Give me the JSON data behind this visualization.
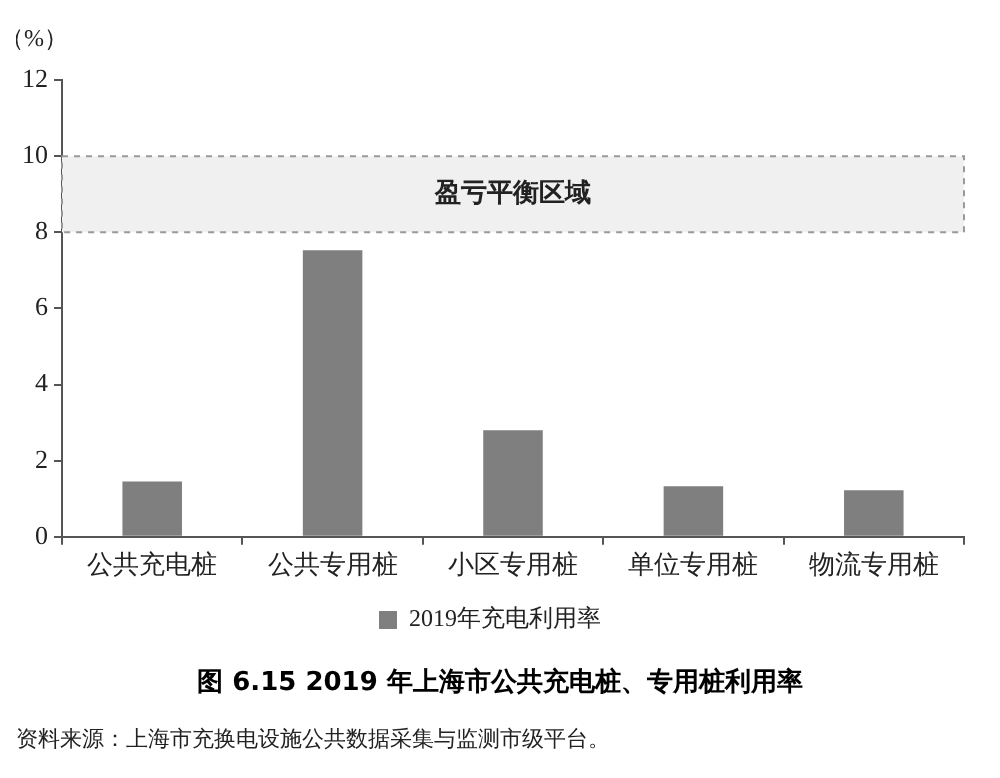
{
  "chart_data": {
    "type": "bar",
    "title": "图 6.15  2019 年上海市公共充电桩、专用桩利用率",
    "ylabel": "（%）",
    "categories": [
      "公共充电桩",
      "公共专用桩",
      "小区专用桩",
      "单位专用桩",
      "物流专用桩"
    ],
    "series": [
      {
        "name": "2019年充电利用率",
        "color": "#7f7f7f",
        "values": [
          1.45,
          7.53,
          2.8,
          1.33,
          1.22
        ]
      }
    ],
    "ylim": [
      0,
      12
    ],
    "yticks": [
      0,
      2,
      4,
      6,
      8,
      10,
      12
    ],
    "grid": false,
    "legend": "bottom",
    "bands": [
      {
        "axis": "y",
        "from": 8,
        "to": 10,
        "label": "盈亏平衡区域",
        "color": "#f0f0f0"
      }
    ],
    "annotations": [
      "资料来源：上海市充换电设施公共数据采集与监测市级平台。"
    ]
  }
}
